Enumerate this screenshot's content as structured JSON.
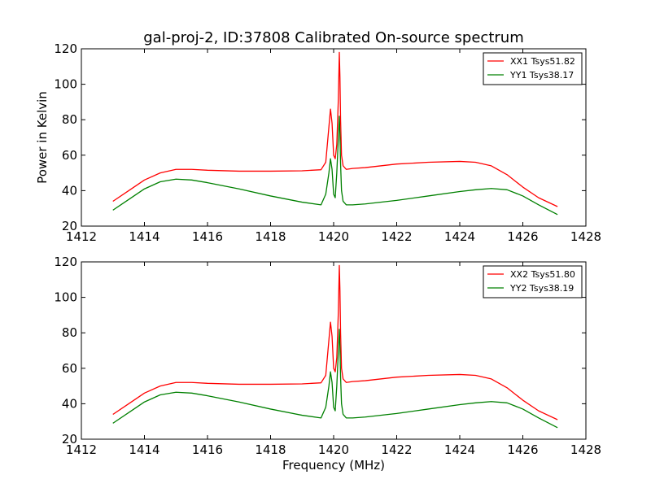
{
  "chart_data": [
    {
      "type": "line",
      "title": "gal-proj-2, ID:37808 Calibrated On-source spectrum",
      "xlabel": "",
      "ylabel": "Power in Kelvin",
      "xlim": [
        1412,
        1428
      ],
      "ylim": [
        20,
        120
      ],
      "xticks": [
        1412,
        1414,
        1416,
        1418,
        1420,
        1422,
        1424,
        1426,
        1428
      ],
      "yticks": [
        20,
        40,
        60,
        80,
        100,
        120
      ],
      "grid": false,
      "legend_position": "top-right",
      "series": [
        {
          "name": "XX1 Tsys51.82",
          "color": "#ff0000",
          "x": [
            1413.0,
            1413.5,
            1414.0,
            1414.5,
            1415.0,
            1415.5,
            1416.0,
            1417.0,
            1418.0,
            1419.0,
            1419.6,
            1419.75,
            1419.85,
            1419.9,
            1419.95,
            1420.0,
            1420.05,
            1420.1,
            1420.15,
            1420.18,
            1420.2,
            1420.22,
            1420.25,
            1420.3,
            1420.4,
            1420.6,
            1421.0,
            1422.0,
            1423.0,
            1424.0,
            1424.5,
            1425.0,
            1425.5,
            1426.0,
            1426.5,
            1427.1
          ],
          "y": [
            34,
            40,
            46,
            50,
            52,
            52,
            51.5,
            51,
            51,
            51.2,
            51.8,
            56,
            76,
            86,
            78,
            60,
            58,
            66,
            92,
            118,
            104,
            80,
            60,
            54,
            52,
            52.5,
            53,
            55,
            56,
            56.5,
            56,
            54,
            49,
            42,
            36,
            31
          ]
        },
        {
          "name": "YY1 Tsys38.17",
          "color": "#008000",
          "x": [
            1413.0,
            1413.5,
            1414.0,
            1414.5,
            1415.0,
            1415.5,
            1416.0,
            1417.0,
            1418.0,
            1419.0,
            1419.6,
            1419.75,
            1419.85,
            1419.9,
            1419.95,
            1420.0,
            1420.05,
            1420.1,
            1420.15,
            1420.18,
            1420.2,
            1420.22,
            1420.25,
            1420.3,
            1420.4,
            1420.6,
            1421.0,
            1422.0,
            1423.0,
            1424.0,
            1424.5,
            1425.0,
            1425.5,
            1426.0,
            1426.5,
            1427.1
          ],
          "y": [
            29,
            35,
            41,
            45,
            46.5,
            46,
            44.5,
            41,
            37,
            33.5,
            32,
            38,
            50,
            58,
            52,
            38,
            36,
            50,
            70,
            82,
            72,
            55,
            40,
            34,
            32,
            32,
            32.5,
            34.5,
            37,
            39.5,
            40.5,
            41.2,
            40.5,
            37,
            32,
            26.5
          ]
        }
      ]
    },
    {
      "type": "line",
      "title": "",
      "xlabel": "Frequency (MHz)",
      "ylabel": "",
      "xlim": [
        1412,
        1428
      ],
      "ylim": [
        20,
        120
      ],
      "xticks": [
        1412,
        1414,
        1416,
        1418,
        1420,
        1422,
        1424,
        1426,
        1428
      ],
      "yticks": [
        20,
        40,
        60,
        80,
        100,
        120
      ],
      "grid": false,
      "legend_position": "top-right",
      "series": [
        {
          "name": "XX2 Tsys51.80",
          "color": "#ff0000",
          "x": [
            1413.0,
            1413.5,
            1414.0,
            1414.5,
            1415.0,
            1415.5,
            1416.0,
            1417.0,
            1418.0,
            1419.0,
            1419.6,
            1419.75,
            1419.85,
            1419.9,
            1419.95,
            1420.0,
            1420.05,
            1420.1,
            1420.15,
            1420.18,
            1420.2,
            1420.22,
            1420.25,
            1420.3,
            1420.4,
            1420.6,
            1421.0,
            1422.0,
            1423.0,
            1424.0,
            1424.5,
            1425.0,
            1425.5,
            1426.0,
            1426.5,
            1427.1
          ],
          "y": [
            34,
            40,
            46,
            50,
            52,
            52,
            51.5,
            51,
            51,
            51.2,
            51.8,
            56,
            76,
            86,
            78,
            60,
            58,
            66,
            92,
            118,
            104,
            80,
            60,
            54,
            52,
            52.5,
            53,
            55,
            56,
            56.5,
            56,
            54,
            49,
            42,
            36,
            31
          ]
        },
        {
          "name": "YY2 Tsys38.19",
          "color": "#008000",
          "x": [
            1413.0,
            1413.5,
            1414.0,
            1414.5,
            1415.0,
            1415.5,
            1416.0,
            1417.0,
            1418.0,
            1419.0,
            1419.6,
            1419.75,
            1419.85,
            1419.9,
            1419.95,
            1420.0,
            1420.05,
            1420.1,
            1420.15,
            1420.18,
            1420.2,
            1420.22,
            1420.25,
            1420.3,
            1420.4,
            1420.6,
            1421.0,
            1422.0,
            1423.0,
            1424.0,
            1424.5,
            1425.0,
            1425.5,
            1426.0,
            1426.5,
            1427.1
          ],
          "y": [
            29,
            35,
            41,
            45,
            46.5,
            46,
            44.5,
            41,
            37,
            33.5,
            32,
            38,
            50,
            58,
            52,
            38,
            36,
            50,
            70,
            82,
            72,
            55,
            40,
            34,
            32,
            32,
            32.5,
            34.5,
            37,
            39.5,
            40.5,
            41.2,
            40.5,
            37,
            32,
            26.5
          ]
        }
      ]
    }
  ]
}
